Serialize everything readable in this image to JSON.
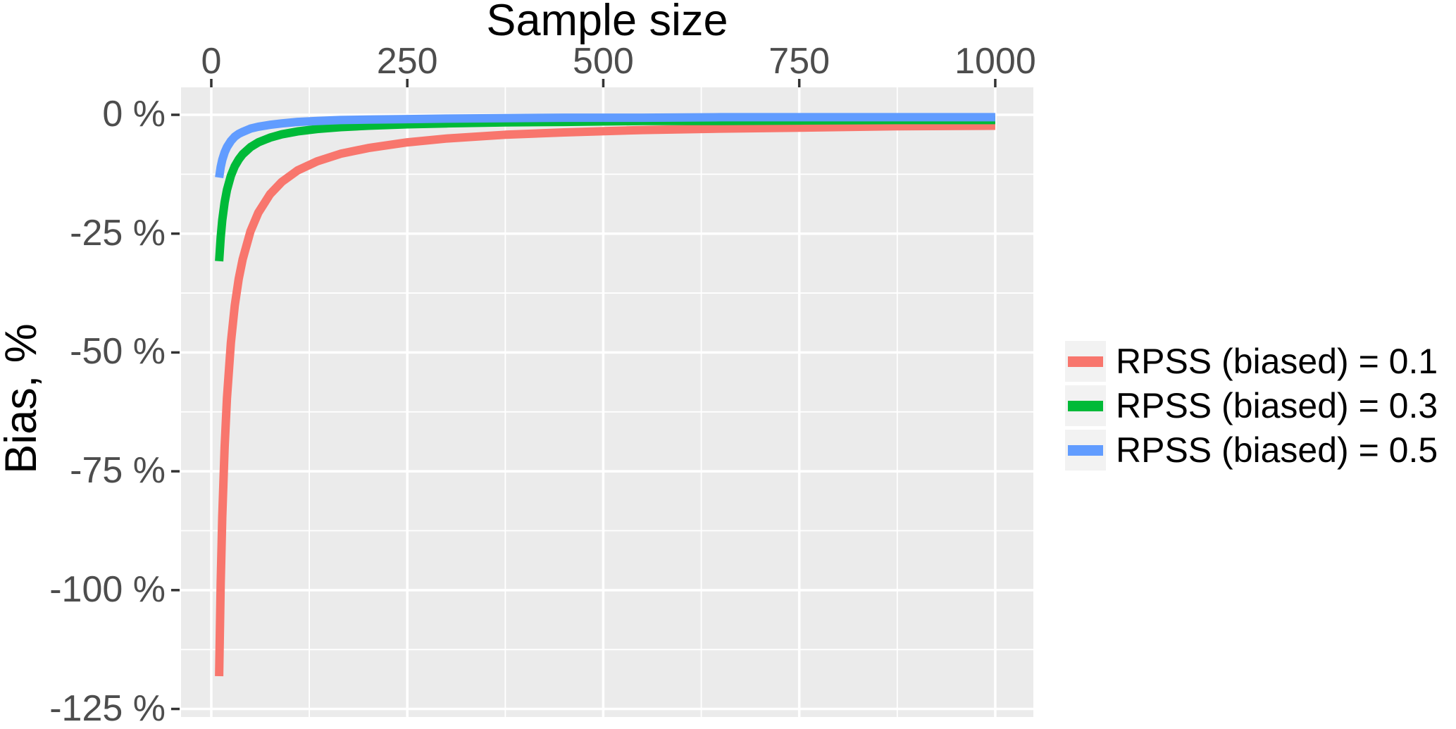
{
  "figure": {
    "background": "#FFFFFF",
    "panel_background": "#EBEBEB",
    "grid_major_color": "#FFFFFF",
    "grid_minor_color": "#FFFFFF",
    "axis_text_color": "#4D4D4D",
    "axis_title_color": "#000000",
    "tick_mark_color": "#333333",
    "legend_key_fill": "#F2F2F2"
  },
  "chart_data": {
    "type": "line",
    "title": "",
    "xlabel": "Sample size",
    "ylabel": "Bias, %",
    "x_axis_position": "top",
    "grid": true,
    "legend_position": "right",
    "xlim": [
      -38.6,
      1048.6
    ],
    "ylim": [
      -126.7,
      5.78
    ],
    "x_ticks": [
      {
        "value": 0,
        "label": "0"
      },
      {
        "value": 250,
        "label": "250"
      },
      {
        "value": 500,
        "label": "500"
      },
      {
        "value": 750,
        "label": "750"
      },
      {
        "value": 1000,
        "label": "1000"
      }
    ],
    "y_ticks": [
      {
        "value": 0,
        "label": "0 %"
      },
      {
        "value": -25,
        "label": "-25 %"
      },
      {
        "value": -50,
        "label": "-50 %"
      },
      {
        "value": -75,
        "label": "-75 %"
      },
      {
        "value": -100,
        "label": "-100 %"
      },
      {
        "value": -125,
        "label": "-125 %"
      }
    ],
    "x_minor_ticks": [
      125,
      375,
      625,
      875
    ],
    "y_minor_ticks": [
      -12.5,
      -37.5,
      -62.5,
      -87.5,
      -112.5
    ],
    "series": [
      {
        "name": "RPSS (biased) = 0.1",
        "color": "#F8766D",
        "points": [
          [
            10,
            -118.1
          ],
          [
            12,
            -98.6
          ],
          [
            14,
            -84.7
          ],
          [
            17,
            -69.9
          ],
          [
            20,
            -59.6
          ],
          [
            25,
            -47.9
          ],
          [
            30,
            -40.1
          ],
          [
            35,
            -34.5
          ],
          [
            40,
            -30.4
          ],
          [
            50,
            -24.5
          ],
          [
            60,
            -20.6
          ],
          [
            75,
            -16.7
          ],
          [
            90,
            -14.1
          ],
          [
            110,
            -11.7
          ],
          [
            135,
            -9.8
          ],
          [
            165,
            -8.2
          ],
          [
            200,
            -7.0
          ],
          [
            250,
            -5.8
          ],
          [
            300,
            -5.0
          ],
          [
            375,
            -4.2
          ],
          [
            450,
            -3.7
          ],
          [
            550,
            -3.2
          ],
          [
            650,
            -2.9
          ],
          [
            750,
            -2.7
          ],
          [
            875,
            -2.4
          ],
          [
            1000,
            -2.3
          ]
        ]
      },
      {
        "name": "RPSS (biased) = 0.3",
        "color": "#00BA38",
        "points": [
          [
            10,
            -30.8
          ],
          [
            12,
            -25.8
          ],
          [
            14,
            -22.2
          ],
          [
            17,
            -18.4
          ],
          [
            20,
            -15.8
          ],
          [
            25,
            -12.8
          ],
          [
            30,
            -10.8
          ],
          [
            35,
            -9.4
          ],
          [
            40,
            -8.3
          ],
          [
            50,
            -6.8
          ],
          [
            60,
            -5.8
          ],
          [
            75,
            -4.8
          ],
          [
            90,
            -4.1
          ],
          [
            110,
            -3.5
          ],
          [
            135,
            -3.0
          ],
          [
            165,
            -2.6
          ],
          [
            200,
            -2.3
          ],
          [
            250,
            -2.0
          ],
          [
            300,
            -1.8
          ],
          [
            375,
            -1.6
          ],
          [
            450,
            -1.5
          ],
          [
            550,
            -1.3
          ],
          [
            650,
            -1.3
          ],
          [
            750,
            -1.2
          ],
          [
            875,
            -1.1
          ],
          [
            1000,
            -1.1
          ]
        ]
      },
      {
        "name": "RPSS (biased) = 0.5",
        "color": "#619CFF",
        "points": [
          [
            10,
            -13.2
          ],
          [
            12,
            -11.0
          ],
          [
            14,
            -9.5
          ],
          [
            17,
            -7.9
          ],
          [
            20,
            -6.8
          ],
          [
            25,
            -5.5
          ],
          [
            30,
            -4.6
          ],
          [
            35,
            -4.0
          ],
          [
            40,
            -3.6
          ],
          [
            50,
            -2.9
          ],
          [
            60,
            -2.5
          ],
          [
            75,
            -2.1
          ],
          [
            90,
            -1.8
          ],
          [
            110,
            -1.5
          ],
          [
            135,
            -1.3
          ],
          [
            165,
            -1.1
          ],
          [
            200,
            -1.0
          ],
          [
            250,
            -0.9
          ],
          [
            300,
            -0.8
          ],
          [
            375,
            -0.7
          ],
          [
            450,
            -0.6
          ],
          [
            550,
            -0.6
          ],
          [
            650,
            -0.5
          ],
          [
            750,
            -0.5
          ],
          [
            875,
            -0.5
          ],
          [
            1000,
            -0.5
          ]
        ]
      }
    ]
  },
  "legend": {
    "entries": [
      {
        "label": "RPSS (biased) = 0.1",
        "color": "#F8766D"
      },
      {
        "label": "RPSS (biased) = 0.3",
        "color": "#00BA38"
      },
      {
        "label": "RPSS (biased) = 0.5",
        "color": "#619CFF"
      }
    ]
  }
}
